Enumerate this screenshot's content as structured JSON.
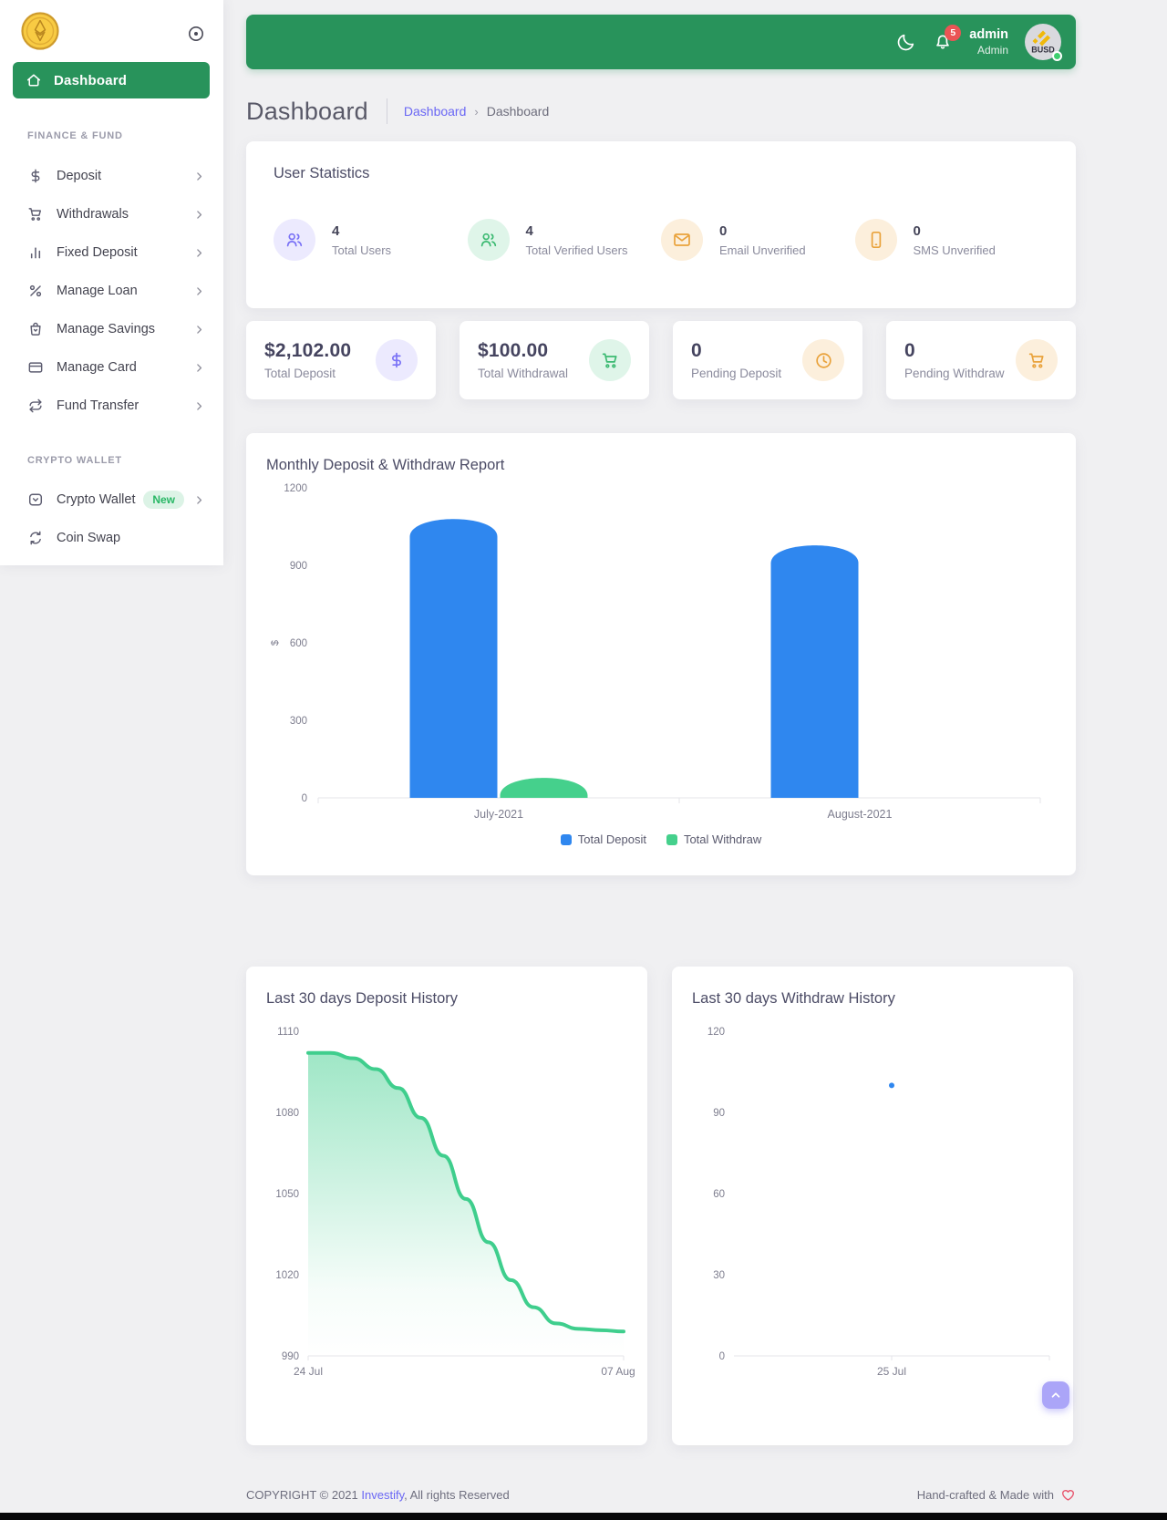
{
  "colors": {
    "primary_green": "#28935B",
    "accent_purple": "#6A67F4",
    "bar_blue": "#2F87EF",
    "bar_green": "#45D08C",
    "icon_orange": "#E9A23B",
    "badge_red": "#EA5455",
    "new_badge_green": "#28B765"
  },
  "sidebar": {
    "dashboard_label": "Dashboard",
    "sections": [
      {
        "label": "FINANCE & FUND",
        "items": [
          {
            "label": "Deposit",
            "icon": "dollar-icon"
          },
          {
            "label": "Withdrawals",
            "icon": "cart-icon"
          },
          {
            "label": "Fixed Deposit",
            "icon": "bar-chart-icon"
          },
          {
            "label": "Manage Loan",
            "icon": "percent-icon"
          },
          {
            "label": "Manage Savings",
            "icon": "bag-icon"
          },
          {
            "label": "Manage Card",
            "icon": "credit-card-icon"
          },
          {
            "label": "Fund Transfer",
            "icon": "transfer-icon"
          }
        ]
      },
      {
        "label": "CRYPTO WALLET",
        "items": [
          {
            "label": "Crypto Wallet",
            "icon": "wallet-icon",
            "badge": "New"
          },
          {
            "label": "Coin Swap",
            "icon": "swap-icon"
          }
        ]
      }
    ]
  },
  "header": {
    "username": "admin",
    "role": "Admin",
    "notification_count": "5",
    "avatar_text": "BUSD"
  },
  "breadcrumb": {
    "title": "Dashboard",
    "link": "Dashboard",
    "current": "Dashboard"
  },
  "user_statistics": {
    "title": "User Statistics",
    "items": [
      {
        "value": "4",
        "label": "Total Users",
        "icon": "users-icon",
        "theme": "purple"
      },
      {
        "value": "4",
        "label": "Total Verified Users",
        "icon": "users-icon",
        "theme": "green"
      },
      {
        "value": "0",
        "label": "Email Unverified",
        "icon": "mail-icon",
        "theme": "orange"
      },
      {
        "value": "0",
        "label": "SMS Unverified",
        "icon": "phone-icon",
        "theme": "orange"
      }
    ]
  },
  "summary_cards": [
    {
      "amount": "$2,102.00",
      "label": "Total Deposit",
      "icon": "dollar-icon",
      "theme": "purple"
    },
    {
      "amount": "$100.00",
      "label": "Total Withdrawal",
      "icon": "cart-icon",
      "theme": "green"
    },
    {
      "amount": "0",
      "label": "Pending Deposit",
      "icon": "clock-icon",
      "theme": "orange"
    },
    {
      "amount": "0",
      "label": "Pending Withdraw",
      "icon": "cart-icon",
      "theme": "orange"
    }
  ],
  "chart_data": [
    {
      "type": "bar",
      "title": "Monthly Deposit & Withdraw Report",
      "categories": [
        "July-2021",
        "August-2021"
      ],
      "series": [
        {
          "name": "Total Deposit",
          "color": "#2F87EF",
          "values": [
            1102,
            1000
          ]
        },
        {
          "name": "Total Withdraw",
          "color": "#45D08C",
          "values": [
            100,
            0
          ]
        }
      ],
      "ylabel": "$",
      "ylim": [
        0,
        1200
      ],
      "yticks": [
        0,
        300,
        600,
        900,
        1200
      ],
      "grid": false,
      "legend_position": "bottom"
    },
    {
      "type": "area",
      "title": "Last 30 days Deposit History",
      "series_color": "#3FCE8D",
      "x_ticks": [
        "24 Jul",
        "07 Aug"
      ],
      "ylim": [
        990,
        1110
      ],
      "yticks": [
        990,
        1020,
        1050,
        1080,
        1110
      ],
      "values": [
        1102,
        1102,
        1100,
        1096,
        1089,
        1078,
        1064,
        1048,
        1032,
        1018,
        1008,
        1002,
        1000,
        999.5,
        999
      ]
    },
    {
      "type": "scatter",
      "title": "Last 30 days Withdraw History",
      "point_color": "#2F87EF",
      "x_ticks": [
        "25 Jul"
      ],
      "ylim": [
        0,
        120
      ],
      "yticks": [
        0,
        30,
        60,
        90,
        120
      ],
      "points": [
        {
          "x_frac": 0.5,
          "y": 100,
          "x_label": "25 Jul"
        }
      ]
    }
  ],
  "footer": {
    "copyright_prefix": "COPYRIGHT © 2021 ",
    "brand": "Investify",
    "copyright_suffix": ", All rights Reserved",
    "made_with": "Hand-crafted & Made with",
    "heart_icon": "heart-icon"
  }
}
